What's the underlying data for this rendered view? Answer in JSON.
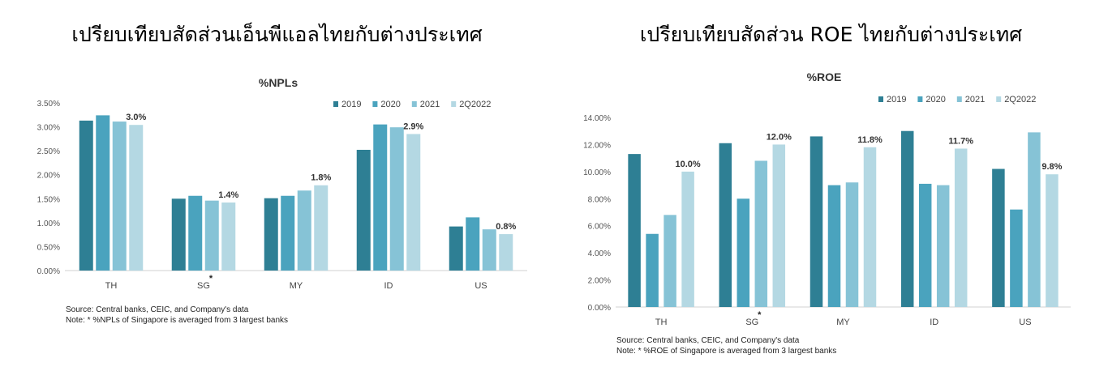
{
  "left": {
    "heading": "เปรียบเทียบสัดส่วนเอ็นพีแอลไทยกับต่างประเทศ",
    "source": "Source: Central banks, CEIC, and Company's data",
    "note": "Note: * %NPLs of Singapore is averaged from 3 largest banks"
  },
  "right": {
    "heading": "เปรียบเทียบสัดส่วน ROE ไทยกับต่างประเทศ",
    "source": "Source: Central banks, CEIC, and Company's data",
    "note": "Note: * %ROE of Singapore is averaged from 3 largest banks"
  },
  "colors": [
    "#2e7f94",
    "#4aa3be",
    "#86c3d6",
    "#b4d8e3"
  ],
  "chart_data": [
    {
      "type": "bar",
      "title": "%NPLs",
      "categories": [
        "TH",
        "SG",
        "MY",
        "ID",
        "US"
      ],
      "category_marker": {
        "category": "SG",
        "text": "*"
      },
      "ylim": [
        0,
        3.5
      ],
      "yticks": [
        0,
        0.5,
        1.0,
        1.5,
        2.0,
        2.5,
        3.0,
        3.5
      ],
      "ytick_labels": [
        "0.00%",
        "0.50%",
        "1.00%",
        "1.50%",
        "2.00%",
        "2.50%",
        "3.00%",
        "3.50%"
      ],
      "legend_position": "top-right",
      "series": [
        {
          "name": "2019",
          "values": [
            3.13,
            1.5,
            1.51,
            2.52,
            0.92
          ]
        },
        {
          "name": "2020",
          "values": [
            3.24,
            1.56,
            1.56,
            3.05,
            1.11
          ]
        },
        {
          "name": "2021",
          "values": [
            3.11,
            1.46,
            1.67,
            2.99,
            0.86
          ]
        },
        {
          "name": "2Q2022",
          "values": [
            3.04,
            1.42,
            1.78,
            2.85,
            0.76
          ]
        }
      ],
      "data_labels": [
        "3.0%",
        "1.4%",
        "1.8%",
        "2.9%",
        "0.8%"
      ]
    },
    {
      "type": "bar",
      "title": "%ROE",
      "categories": [
        "TH",
        "SG",
        "MY",
        "ID",
        "US"
      ],
      "category_marker": {
        "category": "SG",
        "text": "*"
      },
      "ylim": [
        0,
        14
      ],
      "yticks": [
        0,
        2,
        4,
        6,
        8,
        10,
        12,
        14
      ],
      "ytick_labels": [
        "0.00%",
        "2.00%",
        "4.00%",
        "6.00%",
        "8.00%",
        "10.00%",
        "12.00%",
        "14.00%"
      ],
      "legend_position": "top-right",
      "series": [
        {
          "name": "2019",
          "values": [
            11.3,
            12.1,
            12.6,
            13.0,
            10.2
          ]
        },
        {
          "name": "2020",
          "values": [
            5.4,
            8.0,
            9.0,
            9.1,
            7.2
          ]
        },
        {
          "name": "2021",
          "values": [
            6.8,
            10.8,
            9.2,
            9.0,
            12.9
          ]
        },
        {
          "name": "2Q2022",
          "values": [
            10.0,
            12.0,
            11.8,
            11.7,
            9.8
          ]
        }
      ],
      "data_labels": [
        "10.0%",
        "12.0%",
        "11.8%",
        "11.7%",
        "9.8%"
      ]
    }
  ]
}
